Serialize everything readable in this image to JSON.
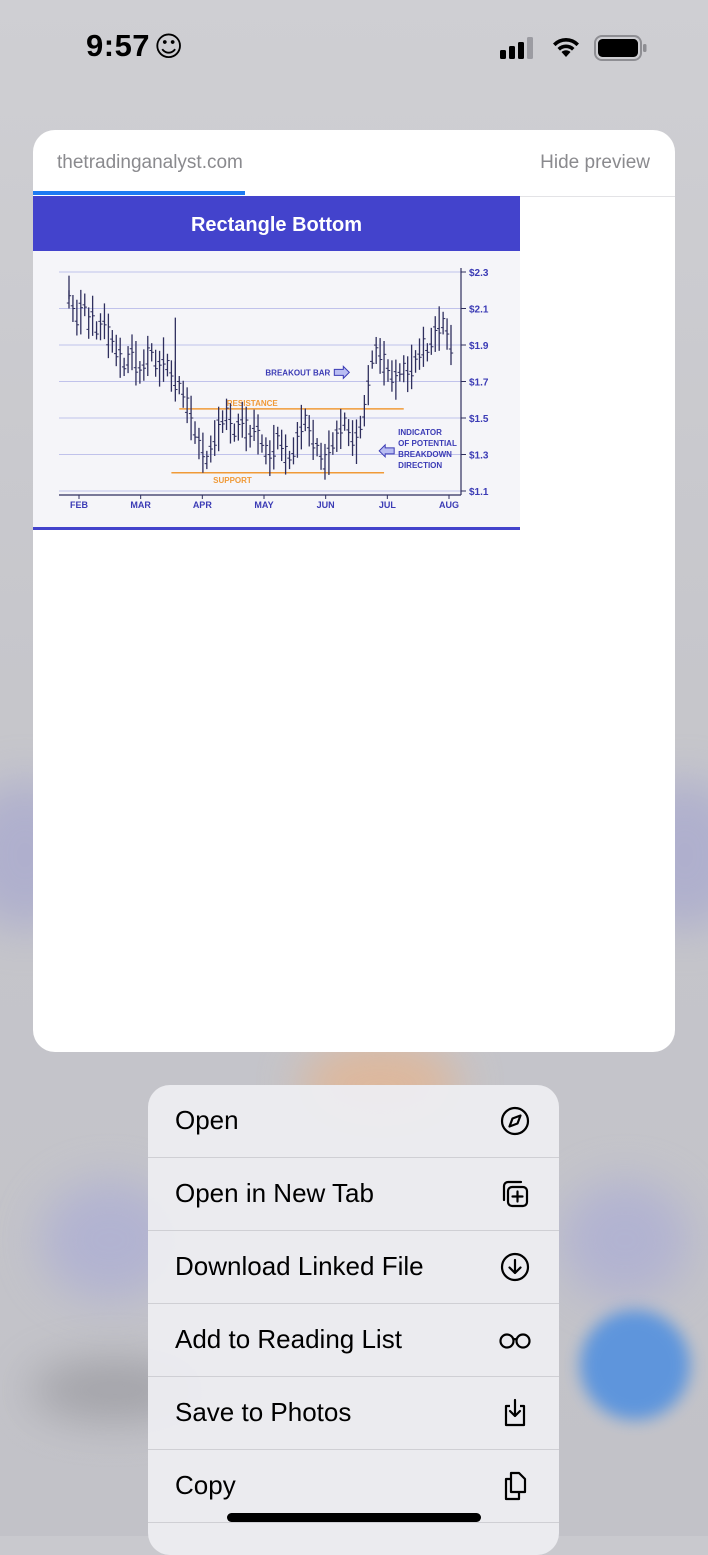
{
  "status_bar": {
    "time": "9:57",
    "emoji": "☺"
  },
  "preview": {
    "domain": "thetradinganalyst.com",
    "hide_label": "Hide preview",
    "load_progress": 0.33
  },
  "figure": {
    "title": "Rectangle Bottom",
    "colors": {
      "header": "#4343cc",
      "bars": "#2f2f5e",
      "grid": "#aeb0e6",
      "level": "#f09a38",
      "annotation": "#3b3bb5"
    },
    "y_ticks": [
      "$2.3",
      "$2.1",
      "$1.9",
      "$1.7",
      "$1.5",
      "$1.3",
      "$1.1"
    ],
    "x_ticks": [
      "FEB",
      "MAR",
      "APR",
      "MAY",
      "JUN",
      "JUL",
      "AUG"
    ],
    "annotations": {
      "resistance": "RESISTANCE",
      "support": "SUPPORT",
      "breakout": "BREAKOUT BAR",
      "indicator": [
        "INDICATOR",
        "OF POTENTIAL",
        "BREAKDOWN",
        "DIRECTION"
      ]
    },
    "levels": {
      "resistance": 1.55,
      "support": 1.2
    },
    "price_bars": [
      2.15,
      2.1,
      2.05,
      2.08,
      2.12,
      2.02,
      2.06,
      1.98,
      2.0,
      2.03,
      1.95,
      1.92,
      1.87,
      1.83,
      1.78,
      1.82,
      1.86,
      1.8,
      1.75,
      1.79,
      1.84,
      1.86,
      1.8,
      1.77,
      1.82,
      1.79,
      1.73,
      1.7,
      1.68,
      1.63,
      1.57,
      1.5,
      1.42,
      1.36,
      1.31,
      1.27,
      1.33,
      1.39,
      1.44,
      1.48,
      1.52,
      1.47,
      1.42,
      1.45,
      1.49,
      1.44,
      1.4,
      1.46,
      1.41,
      1.36,
      1.32,
      1.28,
      1.34,
      1.39,
      1.35,
      1.3,
      1.27,
      1.32,
      1.38,
      1.45,
      1.49,
      1.43,
      1.38,
      1.34,
      1.29,
      1.26,
      1.31,
      1.36,
      1.4,
      1.44,
      1.48,
      1.42,
      1.39,
      1.37,
      1.45,
      1.54,
      1.68,
      1.82,
      1.87,
      1.84,
      1.8,
      1.76,
      1.73,
      1.71,
      1.75,
      1.77,
      1.74,
      1.78,
      1.81,
      1.85,
      1.89,
      1.86,
      1.92,
      1.96,
      1.99,
      2.02,
      1.96,
      1.9
    ]
  },
  "menu": {
    "items": [
      {
        "label": "Open",
        "icon": "compass-icon"
      },
      {
        "label": "Open in New Tab",
        "icon": "new-tab-icon"
      },
      {
        "label": "Download Linked File",
        "icon": "download-icon"
      },
      {
        "label": "Add to Reading List",
        "icon": "reading-glasses-icon"
      },
      {
        "label": "Save to Photos",
        "icon": "save-to-photos-icon"
      },
      {
        "label": "Copy",
        "icon": "copy-icon"
      }
    ]
  }
}
